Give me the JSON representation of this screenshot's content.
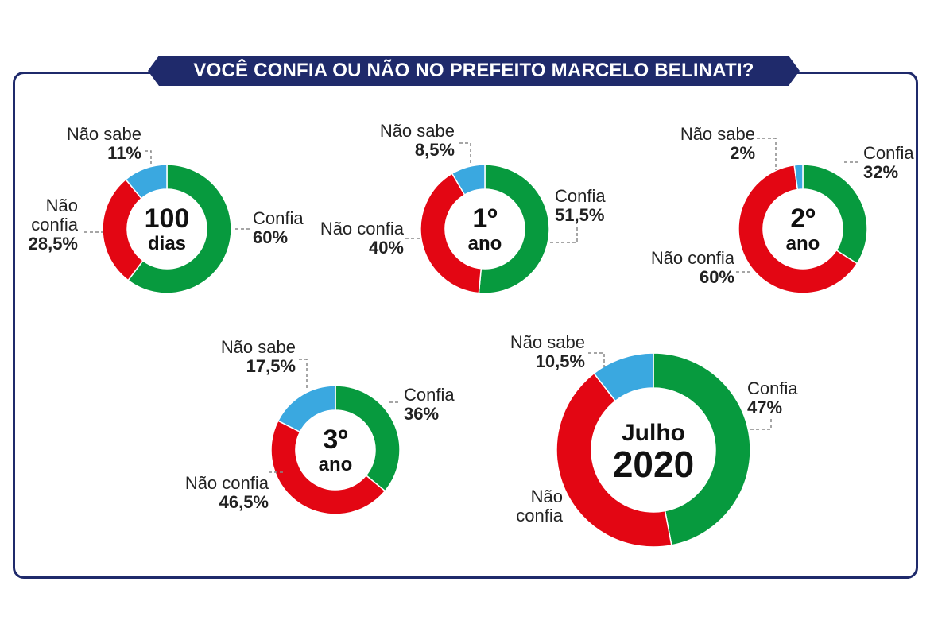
{
  "title": "VOCÊ CONFIA OU NÃO NO PREFEITO MARCELO BELINATI?",
  "colors": {
    "confia": "#079a3e",
    "nao_confia": "#e30613",
    "nao_sabe": "#3aa8e0",
    "frame": "#1f2a6b"
  },
  "chart_data": [
    {
      "type": "pie",
      "center_label": [
        "100",
        "dias"
      ],
      "slices": [
        {
          "name": "Confia",
          "value": 60,
          "value_label": "60%"
        },
        {
          "name": "Não confia",
          "value": 28.5,
          "value_label": "28,5%"
        },
        {
          "name": "Não sabe",
          "value": 11,
          "value_label": "11%"
        }
      ]
    },
    {
      "type": "pie",
      "center_label": [
        "1º",
        "ano"
      ],
      "slices": [
        {
          "name": "Confia",
          "value": 51.5,
          "value_label": "51,5%"
        },
        {
          "name": "Não confia",
          "value": 40,
          "value_label": "40%"
        },
        {
          "name": "Não sabe",
          "value": 8.5,
          "value_label": "8,5%"
        }
      ]
    },
    {
      "type": "pie",
      "center_label": [
        "2º",
        "ano"
      ],
      "slices": [
        {
          "name": "Confia",
          "value": 32,
          "value_label": "32%"
        },
        {
          "name": "Não confia",
          "value": 60,
          "value_label": "60%"
        },
        {
          "name": "Não sabe",
          "value": 2,
          "value_label": "2%"
        }
      ]
    },
    {
      "type": "pie",
      "center_label": [
        "3º",
        "ano"
      ],
      "slices": [
        {
          "name": "Confia",
          "value": 36,
          "value_label": "36%"
        },
        {
          "name": "Não confia",
          "value": 46.5,
          "value_label": "46,5%"
        },
        {
          "name": "Não sabe",
          "value": 17.5,
          "value_label": "17,5%"
        }
      ]
    },
    {
      "type": "pie",
      "center_label": [
        "Julho",
        "2020"
      ],
      "slices": [
        {
          "name": "Confia",
          "value": 47,
          "value_label": "47%"
        },
        {
          "name": "Não confia",
          "value": 42.5,
          "value_label": ""
        },
        {
          "name": "Não sabe",
          "value": 10.5,
          "value_label": "10,5%"
        }
      ]
    }
  ]
}
